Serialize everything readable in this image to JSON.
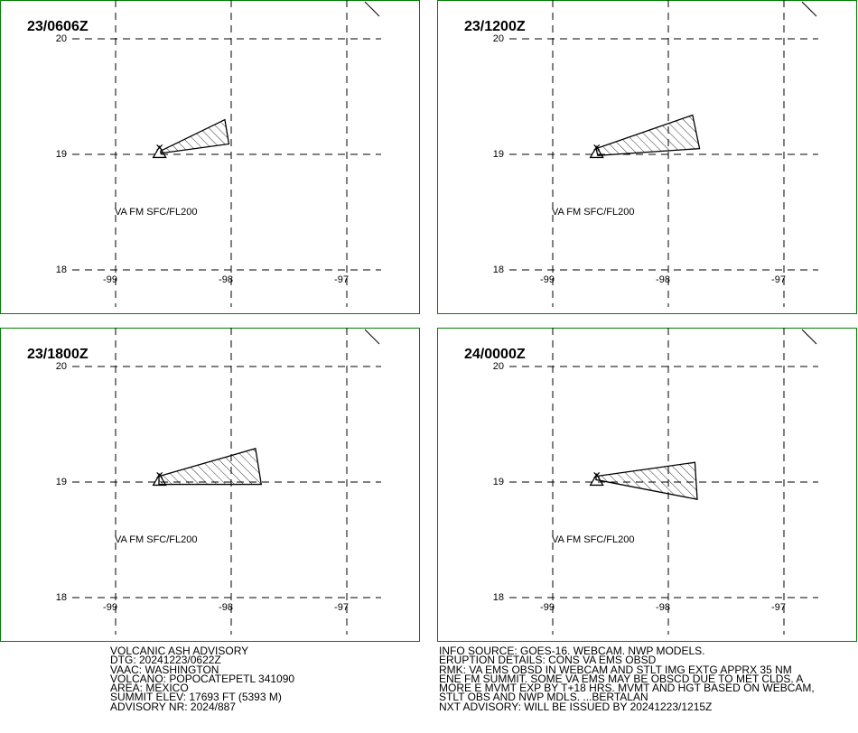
{
  "panels": [
    {
      "title": "23/0606Z",
      "label": "VA FM SFC/FL200",
      "polygon": {
        "lon": [
          -98.61,
          -98.055,
          -98.02,
          -98.61
        ],
        "lat": [
          19.03,
          19.3,
          19.09,
          19.01
        ]
      }
    },
    {
      "title": "23/1200Z",
      "label": "VA FM SFC/FL200",
      "polygon": {
        "lon": [
          -98.625,
          -97.79,
          -97.73,
          -98.61
        ],
        "lat": [
          19.05,
          19.34,
          19.05,
          18.99
        ]
      }
    },
    {
      "title": "23/1800Z",
      "label": "VA FM SFC/FL200",
      "polygon": {
        "lon": [
          -98.625,
          -97.79,
          -97.74,
          -98.625
        ],
        "lat": [
          19.05,
          19.29,
          18.98,
          18.98
        ]
      }
    },
    {
      "title": "24/0000Z",
      "label": "VA FM SFC/FL200",
      "polygon": {
        "lon": [
          -98.625,
          -97.77,
          -97.75,
          -98.625
        ],
        "lat": [
          19.05,
          19.17,
          18.85,
          19.02
        ]
      }
    }
  ],
  "volcano": {
    "lon": -98.62,
    "lat": 19.02
  },
  "lon_ticks": [
    -99,
    -98,
    -97
  ],
  "lat_ticks": [
    18,
    19,
    20
  ],
  "text": {
    "left": [
      "VOLCANIC ASH ADVISORY",
      "DTG: 20241223/0622Z",
      "VAAC: WASHINGTON",
      "VOLCANO: POPOCATEPETL 341090",
      "AREA: MEXICO",
      "SUMMIT ELEV: 17693 FT (5393 M)",
      "ADVISORY NR: 2024/887"
    ],
    "right": [
      "INFO SOURCE: GOES-16. WEBCAM. NWP MODELS.",
      "ERUPTION DETAILS: CONS VA EMS OBSD",
      "RMK: VA EMS OBSD IN WEBCAM AND STLT IMG EXTG APPRX 35 NM",
      "ENE FM SUMMIT. SOME VA EMS MAY BE OBSCD DUE TO MET CLDS. A",
      "MORE E MVMT EXP BY T+18 HRS. MVMT AND HGT BASED ON WEBCAM,",
      "STLT OBS AND NWP MDLS. ...BERTALAN",
      "NXT ADVISORY: WILL BE ISSUED BY 20241223/1215Z"
    ]
  }
}
